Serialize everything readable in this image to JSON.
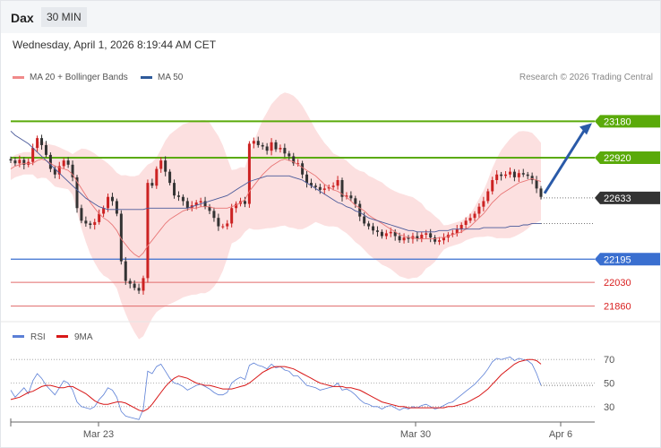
{
  "header": {
    "symbol": "Dax",
    "timeframe": "30 MIN"
  },
  "datetime": "Wednesday, April 1, 2026 8:19:44 AM CET",
  "legend": {
    "ma20": "MA 20 + Bollinger Bands",
    "ma50": "MA 50",
    "rsi": "RSI",
    "rsi_ma": "9MA"
  },
  "credit": "Research © 2026 Trading Central",
  "colors": {
    "resistance": "#5aaa0a",
    "support": "#3a6fd0",
    "target_line": "#e06a6a",
    "up": "#cc2222",
    "down": "#333333",
    "bollinger": "#fbd5d5",
    "ma20": "#e87575",
    "ma50": "#4a5a9a",
    "rsi": "#5b7fd6",
    "rsi_ma": "#d81818",
    "arrow": "#2a5aa8"
  },
  "chart_data": [
    {
      "type": "candlestick",
      "title": "",
      "x_tick_labels": [
        "Mar 23",
        "Mar 30",
        "Apr 6"
      ],
      "ylim": [
        21800,
        23400
      ],
      "grid": false,
      "levels": [
        {
          "label": "23180",
          "value": 23180,
          "kind": "resistance"
        },
        {
          "label": "22920",
          "value": 22920,
          "kind": "resistance"
        },
        {
          "label": "22633",
          "value": 22633,
          "kind": "last"
        },
        {
          "label": "22195",
          "value": 22195,
          "kind": "support"
        },
        {
          "label": "22030",
          "value": 22030,
          "kind": "target"
        },
        {
          "label": "21860",
          "value": 21860,
          "kind": "target"
        }
      ],
      "close_series": [
        22900,
        22880,
        22905,
        22870,
        22890,
        22990,
        23060,
        23010,
        22940,
        22840,
        22800,
        22860,
        22900,
        22870,
        22780,
        22560,
        22470,
        22450,
        22440,
        22460,
        22520,
        22560,
        22640,
        22610,
        22520,
        22180,
        22040,
        22020,
        21990,
        21970,
        22060,
        22740,
        22720,
        22840,
        22900,
        22820,
        22740,
        22650,
        22640,
        22610,
        22560,
        22580,
        22600,
        22610,
        22570,
        22540,
        22490,
        22430,
        22430,
        22450,
        22560,
        22590,
        22610,
        22590,
        23020,
        23040,
        23010,
        23000,
        22970,
        23030,
        22980,
        22990,
        22950,
        22930,
        22880,
        22880,
        22800,
        22740,
        22720,
        22710,
        22690,
        22700,
        22710,
        22720,
        22760,
        22640,
        22650,
        22630,
        22590,
        22500,
        22450,
        22430,
        22400,
        22390,
        22360,
        22380,
        22390,
        22360,
        22330,
        22350,
        22340,
        22360,
        22340,
        22370,
        22380,
        22350,
        22320,
        22330,
        22350,
        22370,
        22380,
        22410,
        22440,
        22470,
        22490,
        22520,
        22570,
        22610,
        22680,
        22760,
        22800,
        22790,
        22800,
        22820,
        22780,
        22810,
        22800,
        22790,
        22760,
        22700,
        22640
      ],
      "ma20": [
        22840,
        22860,
        22870,
        22880,
        22880,
        22880,
        22900,
        22910,
        22900,
        22880,
        22860,
        22850,
        22840,
        22830,
        22800,
        22750,
        22700,
        22650,
        22600,
        22560,
        22520,
        22490,
        22470,
        22440,
        22400,
        22340,
        22300,
        22260,
        22230,
        22210,
        22240,
        22290,
        22330,
        22370,
        22410,
        22450,
        22480,
        22500,
        22520,
        22540,
        22550,
        22560,
        22560,
        22570,
        22570,
        22570,
        22560,
        22560,
        22560,
        22560,
        22570,
        22580,
        22600,
        22620,
        22680,
        22720,
        22760,
        22800,
        22830,
        22860,
        22880,
        22900,
        22910,
        22900,
        22890,
        22870,
        22850,
        22830,
        22810,
        22790,
        22760,
        22730,
        22710,
        22690,
        22680,
        22660,
        22640,
        22610,
        22580,
        22560,
        22540,
        22510,
        22490,
        22470,
        22450,
        22430,
        22410,
        22390,
        22370,
        22360,
        22350,
        22350,
        22340,
        22340,
        22340,
        22340,
        22340,
        22350,
        22350,
        22360,
        22370,
        22380,
        22390,
        22410,
        22430,
        22460,
        22490,
        22520,
        22560,
        22600,
        22630,
        22660,
        22680,
        22700,
        22720,
        22740,
        22750,
        22760,
        22770,
        22760,
        22750
      ],
      "ma50": [
        23110,
        23080,
        23060,
        23040,
        23020,
        22990,
        22960,
        22930,
        22900,
        22870,
        22840,
        22810,
        22780,
        22750,
        22720,
        22690,
        22660,
        22630,
        22610,
        22590,
        22570,
        22560,
        22550,
        22550,
        22550,
        22550,
        22550,
        22550,
        22550,
        22550,
        22550,
        22560,
        22560,
        22560,
        22560,
        22560,
        22560,
        22560,
        22560,
        22560,
        22560,
        22570,
        22580,
        22590,
        22600,
        22610,
        22620,
        22630,
        22640,
        22650,
        22670,
        22690,
        22710,
        22730,
        22750,
        22760,
        22770,
        22780,
        22790,
        22790,
        22790,
        22790,
        22790,
        22790,
        22780,
        22770,
        22760,
        22740,
        22720,
        22700,
        22680,
        22660,
        22640,
        22620,
        22600,
        22590,
        22570,
        22560,
        22540,
        22530,
        22510,
        22490,
        22480,
        22470,
        22460,
        22450,
        22440,
        22430,
        22420,
        22410,
        22400,
        22400,
        22390,
        22390,
        22390,
        22390,
        22390,
        22400,
        22400,
        22400,
        22410,
        22410,
        22410,
        22410,
        22410,
        22410,
        22410,
        22420,
        22420,
        22420,
        22420,
        22420,
        22420,
        22430,
        22430,
        22430,
        22440,
        22440,
        22450,
        22450,
        22450
      ]
    },
    {
      "type": "line",
      "title": "",
      "ylim": [
        20,
        80
      ],
      "y_tick_labels": [
        "70",
        "50",
        "30"
      ],
      "series": [
        {
          "name": "RSI",
          "values": [
            44,
            38,
            42,
            46,
            41,
            52,
            58,
            54,
            48,
            44,
            40,
            46,
            52,
            50,
            44,
            34,
            30,
            29,
            28,
            30,
            36,
            40,
            46,
            44,
            38,
            26,
            22,
            21,
            20,
            19,
            28,
            60,
            58,
            64,
            66,
            60,
            54,
            50,
            49,
            47,
            44,
            46,
            48,
            49,
            47,
            45,
            42,
            40,
            40,
            42,
            50,
            53,
            55,
            53,
            65,
            67,
            65,
            64,
            62,
            66,
            63,
            64,
            61,
            60,
            56,
            56,
            52,
            48,
            47,
            46,
            44,
            45,
            46,
            47,
            50,
            44,
            45,
            43,
            40,
            36,
            33,
            32,
            30,
            30,
            28,
            30,
            31,
            29,
            27,
            29,
            28,
            30,
            29,
            31,
            32,
            30,
            28,
            29,
            31,
            33,
            34,
            37,
            40,
            43,
            46,
            49,
            53,
            57,
            62,
            68,
            71,
            70,
            71,
            72,
            69,
            71,
            70,
            69,
            66,
            58,
            48
          ]
        },
        {
          "name": "9MA",
          "values": [
            36,
            37,
            38,
            40,
            42,
            43,
            45,
            47,
            48,
            48,
            47,
            46,
            46,
            47,
            47,
            45,
            43,
            41,
            38,
            35,
            33,
            32,
            32,
            33,
            34,
            34,
            33,
            31,
            29,
            27,
            26,
            28,
            32,
            37,
            42,
            47,
            51,
            54,
            56,
            55,
            54,
            52,
            50,
            49,
            48,
            48,
            47,
            46,
            45,
            45,
            45,
            46,
            47,
            48,
            50,
            53,
            56,
            59,
            61,
            63,
            64,
            64,
            64,
            63,
            62,
            60,
            58,
            56,
            54,
            52,
            50,
            49,
            48,
            47,
            47,
            47,
            46,
            46,
            45,
            44,
            42,
            40,
            38,
            36,
            34,
            33,
            32,
            31,
            30,
            30,
            29,
            29,
            29,
            29,
            29,
            29,
            29,
            29,
            29,
            30,
            30,
            31,
            32,
            33,
            35,
            37,
            39,
            42,
            45,
            49,
            53,
            57,
            60,
            63,
            66,
            68,
            69,
            70,
            70,
            69,
            66
          ]
        }
      ]
    }
  ]
}
